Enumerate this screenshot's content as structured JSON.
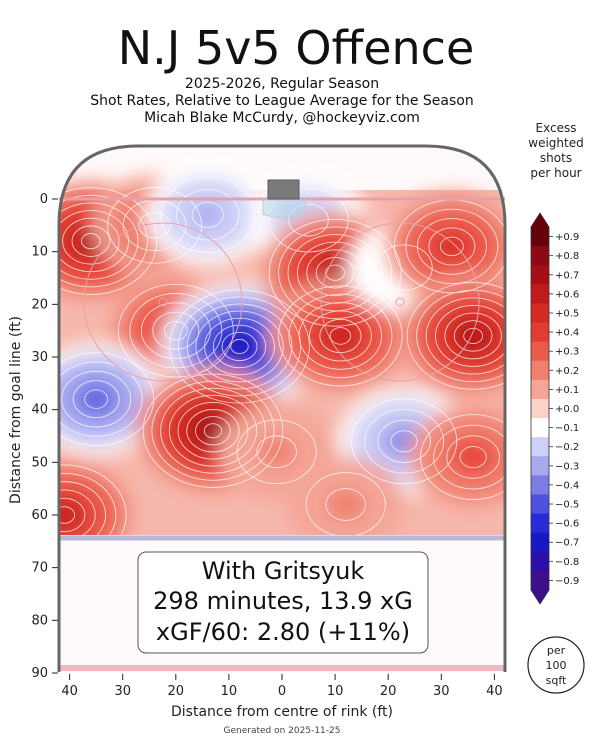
{
  "header": {
    "title": "N.J 5v5 Offence",
    "subtitle_lines": [
      "2025-2026, Regular Season",
      "Shot Rates, Relative to League Average for the Season",
      "Micah Blake McCurdy, @hockeyviz.com"
    ]
  },
  "colorbar": {
    "title_lines": [
      "Excess",
      "weighted",
      "shots",
      "per hour"
    ],
    "ticks": [
      "+0.9",
      "+0.8",
      "+0.7",
      "+0.6",
      "+0.5",
      "+0.4",
      "+0.3",
      "+0.2",
      "+0.1",
      "+0.0",
      "−0.1",
      "−0.2",
      "−0.3",
      "−0.4",
      "−0.5",
      "−0.6",
      "−0.7",
      "−0.8",
      "−0.9"
    ],
    "colors": [
      "#67000d",
      "#8b0a14",
      "#a50f15",
      "#c01a1d",
      "#d42a24",
      "#e23c32",
      "#ec5a4b",
      "#f07f6d",
      "#f4a596",
      "#fad2c9",
      "#ffffff",
      "#cfd0f7",
      "#a7a8f0",
      "#7a7de6",
      "#4f52de",
      "#2a2ad8",
      "#1818c4",
      "#2a0fa8",
      "#3d0f8a"
    ]
  },
  "info_box": {
    "line1": "With Gritsyuk",
    "line2": "298 minutes, 13.9 xG",
    "line3": "xGF/60: 2.80 (+11%)"
  },
  "per_badge": {
    "lines": [
      "per",
      "100",
      "sqft"
    ]
  },
  "footer": "Generated on 2025-11-25",
  "chart_data": {
    "type": "heatmap",
    "title": "N.J 5v5 Offence",
    "xlabel": "Distance from centre of rink (ft)",
    "ylabel": "Distance from goal line (ft)",
    "x_ticks": [
      "40",
      "30",
      "20",
      "10",
      "0",
      "10",
      "20",
      "30",
      "40"
    ],
    "y_ticks": [
      "0",
      "10",
      "20",
      "30",
      "40",
      "50",
      "60",
      "70",
      "80",
      "90"
    ],
    "xlim": [
      -42,
      42
    ],
    "ylim": [
      0,
      90
    ],
    "colorbar_range": [
      -0.9,
      0.9
    ],
    "hotspots": [
      {
        "x": -36,
        "y": 8,
        "value": 0.7
      },
      {
        "x": -24,
        "y": 5,
        "value": 0.3
      },
      {
        "x": -14,
        "y": 3,
        "value": -0.3
      },
      {
        "x": 5,
        "y": 4,
        "value": -0.2
      },
      {
        "x": -20,
        "y": 25,
        "value": 0.5
      },
      {
        "x": -8,
        "y": 28,
        "value": -0.8
      },
      {
        "x": 10,
        "y": 14,
        "value": 0.7
      },
      {
        "x": 11,
        "y": 26,
        "value": 0.6
      },
      {
        "x": 23,
        "y": 13,
        "value": -0.1
      },
      {
        "x": 32,
        "y": 9,
        "value": 0.5
      },
      {
        "x": 36,
        "y": 26,
        "value": 0.7
      },
      {
        "x": -35,
        "y": 38,
        "value": -0.5
      },
      {
        "x": -13,
        "y": 44,
        "value": 0.8
      },
      {
        "x": -1,
        "y": 48,
        "value": 0.2
      },
      {
        "x": 23,
        "y": 46,
        "value": -0.4
      },
      {
        "x": 36,
        "y": 49,
        "value": 0.4
      },
      {
        "x": -41,
        "y": 60,
        "value": 0.6
      },
      {
        "x": 12,
        "y": 58,
        "value": 0.2
      }
    ]
  }
}
